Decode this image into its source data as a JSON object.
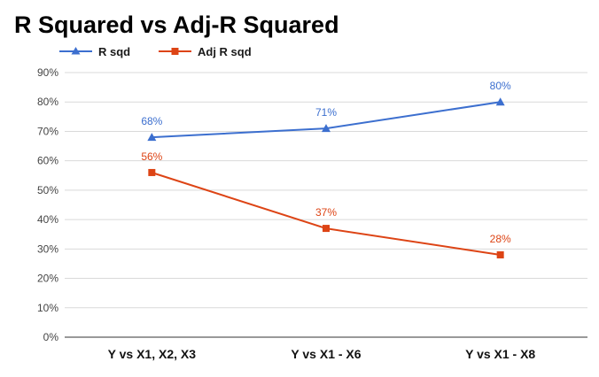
{
  "chart_data": {
    "type": "line",
    "title": "R Squared vs Adj-R Squared",
    "categories": [
      "Y vs X1, X2, X3",
      "Y vs X1 - X6",
      "Y vs X1 - X8"
    ],
    "series": [
      {
        "name": "R sqd",
        "values": [
          68,
          71,
          80
        ],
        "labels": [
          "68%",
          "71%",
          "80%"
        ],
        "color": "#3c6fcf",
        "marker": "triangle"
      },
      {
        "name": "Adj R sqd",
        "values": [
          56,
          37,
          28
        ],
        "labels": [
          "56%",
          "37%",
          "28%"
        ],
        "color": "#dd4415",
        "marker": "square"
      }
    ],
    "ylim": [
      0,
      90
    ],
    "yticks": [
      "0%",
      "10%",
      "20%",
      "30%",
      "40%",
      "50%",
      "60%",
      "70%",
      "80%",
      "90%"
    ],
    "ytick_values": [
      0,
      10,
      20,
      30,
      40,
      50,
      60,
      70,
      80,
      90
    ],
    "grid": true,
    "legend_position": "top-left"
  }
}
